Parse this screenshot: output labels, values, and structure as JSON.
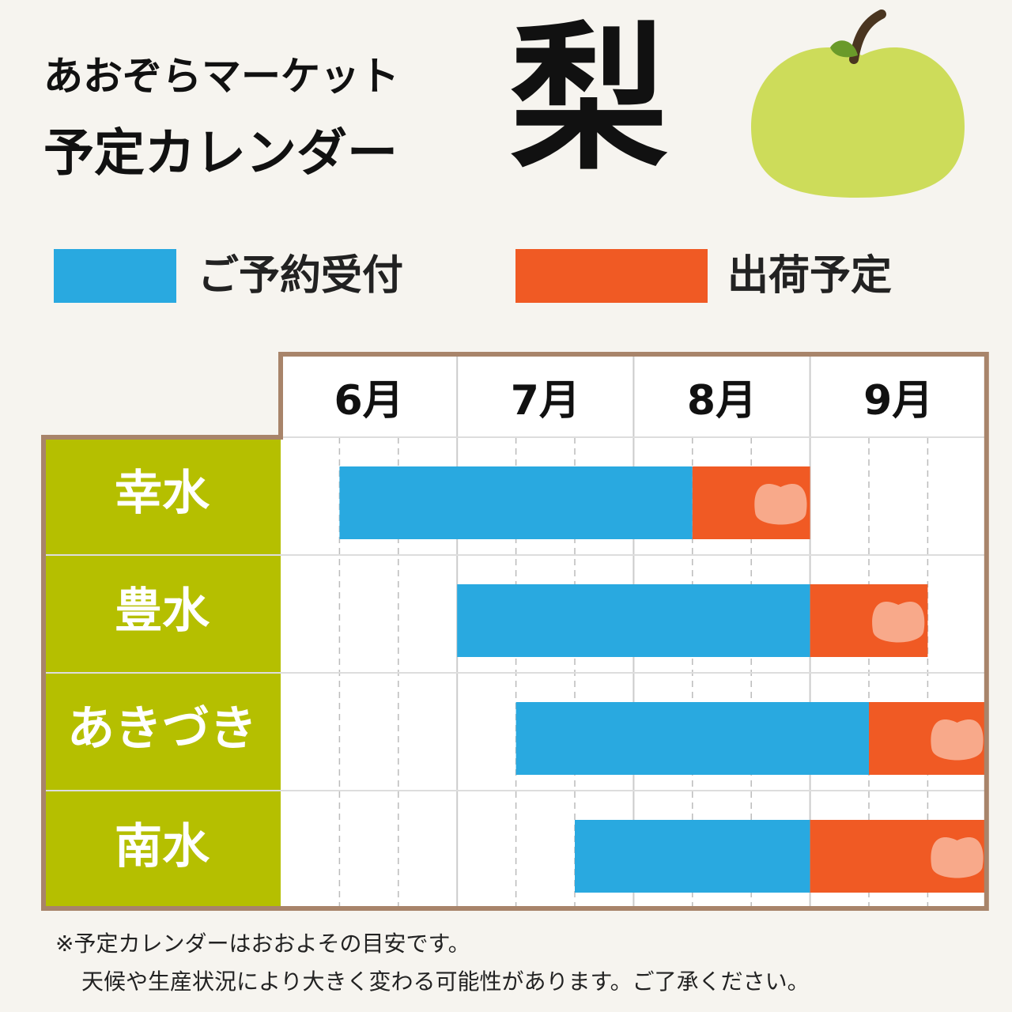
{
  "header": {
    "title_line1": "あおぞらマーケット",
    "title_line2": "予定カレンダー",
    "fruit": "梨"
  },
  "legend": [
    {
      "label": "ご予約受付",
      "color": "#29a9e0"
    },
    {
      "label": "出荷予定",
      "color": "#f05a24"
    }
  ],
  "calendar": {
    "months": [
      "6月",
      "7月",
      "8月",
      "9月"
    ],
    "rows": [
      {
        "variety": "幸水",
        "reserve_start": 1,
        "ship_start": 7,
        "ship_end": 9
      },
      {
        "variety": "豊水",
        "reserve_start": 3,
        "ship_start": 9,
        "ship_end": 11
      },
      {
        "variety": "あきづき",
        "reserve_start": 4,
        "ship_start": 10,
        "ship_end": 12
      },
      {
        "variety": "南水",
        "reserve_start": 5,
        "ship_start": 9,
        "ship_end": 12
      }
    ]
  },
  "notes": [
    "※予定カレンダーはおおよその目安です。",
    "天候や生産状況により大きく変わる可能性があります。ご了承ください。"
  ]
}
